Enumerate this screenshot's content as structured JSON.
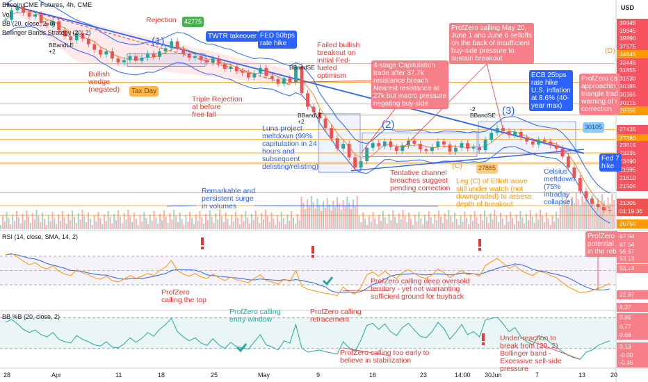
{
  "header": {
    "symbol_line": "Bitcoin CME Futures, 4h, CME",
    "vol": "Vol",
    "bb": "BB (20, close, 2, 0)",
    "bbs": "Bollinger Bands Strategy (20, 2)",
    "currency": "USD"
  },
  "indicators": {
    "rsi_title": "RSI (14, close, SMA, 14, 2)",
    "bbp_title": "BB %B (20, close, 2)"
  },
  "price_axis": [
    {
      "v": "39945",
      "bg": "#f7525f"
    },
    {
      "v": "39945",
      "bg": "#f7525f"
    },
    {
      "v": "39890",
      "bg": "#f7525f"
    },
    {
      "v": "37575",
      "bg": "#f7525f"
    },
    {
      "v": "34845",
      "bg": "#ff9800"
    },
    {
      "v": "33445",
      "bg": "#f7525f"
    },
    {
      "v": "31855",
      "bg": "#f7525f"
    },
    {
      "v": "31630",
      "bg": "#f7525f"
    },
    {
      "v": "30385",
      "bg": "#f7525f"
    },
    {
      "v": "30365",
      "bg": "#f7525f"
    },
    {
      "v": "30215",
      "bg": "#f7525f"
    },
    {
      "v": "28655",
      "bg": "#ff9800"
    },
    {
      "v": "27435",
      "bg": "#f7525f"
    },
    {
      "v": "27280",
      "bg": "#ff9800"
    },
    {
      "v": "23615",
      "bg": "#f7525f"
    },
    {
      "v": "23235",
      "bg": "#f7525f"
    },
    {
      "v": "23490",
      "bg": "#f7525f"
    },
    {
      "v": "21995",
      "bg": "#f7525f"
    },
    {
      "v": "21610",
      "bg": "#f7525f"
    },
    {
      "v": "21505",
      "bg": "#f7525f"
    },
    {
      "v": "21305",
      "bg": "#ef5350"
    },
    {
      "v": "01:19:36",
      "bg": "#ef5350"
    },
    {
      "v": "20750",
      "bg": "#ff9800"
    }
  ],
  "rsi_axis": [
    "67.54",
    "67.54",
    "59.67",
    "53.13",
    "53.13",
    "22.97",
    "8.37"
  ],
  "bbp_axis": [
    "0.86",
    "0.77",
    "0.68",
    "0.13",
    "-0.00",
    "-0.35"
  ],
  "chart_data": {
    "type": "candlestick",
    "x_ticks": [
      "28",
      "Apr",
      "11",
      "18",
      "25",
      "May",
      "9",
      "16",
      "23",
      "14:00",
      "30",
      "Jun",
      "7",
      "13",
      "20"
    ],
    "annotations": {
      "rejection": "Rejection",
      "tag_42775": "42775",
      "twtr": "TWTR takeover",
      "fed50": "FED 50bps\nrate hike",
      "failed_bullish": "Failed bullish\nbreakout on\ninitial Fed-\nfueled\noptimism",
      "wave1": "(1)",
      "wave2": "(2)",
      "wave3": "(3)",
      "waveC": "(C)",
      "waveD": "(D)",
      "bullish_wedge": "Bullish\nwedge\n(negated)",
      "tax_day": "Tax Day",
      "triple_rejection": "Triple Rejection\nat before\nfree fall",
      "capitulation": "4-stage Capitulation\ntrade after 37.7k\nresistance breach\nNearest resistance at\n27k but macro pressure\nnegating buy-side",
      "profzero_may20": "ProfZero calling May 20,\nJune 1 and June 6 selloffs\non the back of insufficient\nbuy-side pressure to\nsustain breakout",
      "ecb": "ECB 25bps\nrate hike\nU.S. inflation\nat 8.6% (40-\nyear max)",
      "profzero_triangle": "ProfZero ca\napproachin\ntriangle trad\nwarning of i\ncorrection",
      "tag_30105": "30105",
      "fed75": "Fed 7\nhike",
      "luna": "Luna project\nmeltdown (99%\ncapitulation in 24\nhours and\nsubsequent\ndelisting/relisting)",
      "tentative": "Tentative channel\nbreaches suggest\npending correction",
      "tag_27865": "27865",
      "elliott": "Leg (C) of Elliott wave\nstill under watch (not\ndowngraded) to assess\ndepth of breakout",
      "celsius": "Celsius\nmeltdown\n(75%\nintraday\ncollapse)",
      "volumes": "Remarkable and\npersistent surge\nin volumes",
      "bbandle1": "BBandLE\n+2",
      "bbandle2": "BBandLE\n+2",
      "bbandse1": "BBandSE",
      "bbandse2": "-2\nBBandSE",
      "pz_top": "ProfZero\ncalling the top",
      "pz_oversold": "ProfZero calling deep oversold\nterritory - yet not warranting\nsufficient ground for buyback",
      "pz_potential": "ProfZero\npotential\nin the reb",
      "pz_entry": "ProfZero calling\nentry window",
      "pz_retrace": "ProfZero calling\nretracement",
      "pz_early": "ProfZero calling too early to\nbelieve in stabilization",
      "underreaction": "Under-reaction to\nbreak from (20, 2)\nBollinger band -\nExcessive sell-side\npressure"
    },
    "price_ylim": [
      19000,
      48000
    ],
    "rsi_ylim": [
      0,
      100
    ],
    "bbp_ylim": [
      -0.5,
      1.1
    ],
    "levels": [
      39945,
      37575,
      34845,
      33445,
      31630,
      30385,
      28655,
      27435,
      27280,
      23615,
      21995,
      20750
    ],
    "price": [
      45500,
      46700,
      47200,
      46400,
      45900,
      46200,
      45100,
      44800,
      45300,
      44200,
      43400,
      42900,
      43800,
      43100,
      42400,
      41700,
      41100,
      41500,
      40600,
      40100,
      40400,
      40900,
      40300,
      40700,
      41200,
      40800,
      41500,
      41900,
      42775,
      41800,
      41200,
      40700,
      40900,
      40400,
      40100,
      40600,
      39900,
      39300,
      39600,
      39000,
      38800,
      38200,
      38700,
      39400,
      38400,
      38000,
      37400,
      38100,
      37600,
      39600,
      36200,
      34500,
      33800,
      33000,
      31800,
      30500,
      29200,
      29800,
      28100,
      26800,
      27600,
      29300,
      29900,
      29500,
      30100,
      29400,
      28900,
      29600,
      30200,
      29800,
      29100,
      28900,
      29400,
      30100,
      29700,
      28800,
      29300,
      29900,
      29200,
      29400,
      29000,
      30300,
      31200,
      31800,
      31400,
      30900,
      31300,
      30600,
      30100,
      29700,
      30300,
      30100,
      29600,
      29200,
      28200,
      26800,
      25500,
      23800,
      22900,
      22200,
      21800,
      21400,
      21305
    ],
    "rsi": [
      72,
      74,
      69,
      63,
      58,
      61,
      55,
      52,
      57,
      49,
      45,
      43,
      51,
      47,
      44,
      40,
      38,
      42,
      36,
      34,
      38,
      43,
      39,
      42,
      46,
      43,
      50,
      55,
      64,
      50,
      45,
      42,
      46,
      41,
      39,
      45,
      40,
      36,
      41,
      37,
      35,
      33,
      39,
      44,
      36,
      34,
      31,
      38,
      35,
      50,
      28,
      24,
      22,
      20,
      18,
      17,
      15,
      27,
      20,
      17,
      27,
      44,
      48,
      42,
      49,
      43,
      39,
      47,
      51,
      46,
      41,
      39,
      44,
      52,
      47,
      40,
      45,
      50,
      44,
      46,
      42,
      57,
      62,
      67,
      60,
      53,
      57,
      50,
      46,
      43,
      49,
      47,
      43,
      40,
      33,
      27,
      23,
      19,
      20,
      22,
      25,
      28,
      32
    ],
    "bbp": [
      0.85,
      0.95,
      0.8,
      0.62,
      0.52,
      0.6,
      0.45,
      0.38,
      0.52,
      0.3,
      0.22,
      0.18,
      0.42,
      0.3,
      0.22,
      0.12,
      0.08,
      0.22,
      0.05,
      0.02,
      0.15,
      0.35,
      0.2,
      0.33,
      0.52,
      0.4,
      0.62,
      0.78,
      0.98,
      0.55,
      0.38,
      0.25,
      0.35,
      0.18,
      0.1,
      0.32,
      0.12,
      0.0,
      0.2,
      0.06,
      0.02,
      -0.02,
      0.22,
      0.45,
      0.12,
      0.05,
      -0.05,
      0.25,
      0.18,
      0.78,
      0.02,
      -0.12,
      -0.08,
      -0.05,
      -0.1,
      -0.14,
      -0.18,
      0.22,
      0.02,
      -0.1,
      0.28,
      0.75,
      0.82,
      0.62,
      0.8,
      0.55,
      0.42,
      0.68,
      0.82,
      0.6,
      0.4,
      0.35,
      0.55,
      0.85,
      0.65,
      0.3,
      0.52,
      0.78,
      0.45,
      0.55,
      0.38,
      0.92,
      0.98,
      1.02,
      0.8,
      0.55,
      0.68,
      0.38,
      0.22,
      0.12,
      0.42,
      0.35,
      0.18,
      0.05,
      -0.1,
      -0.22,
      -0.3,
      -0.35,
      -0.12,
      -0.05,
      0.1,
      0.18,
      0.25
    ]
  }
}
